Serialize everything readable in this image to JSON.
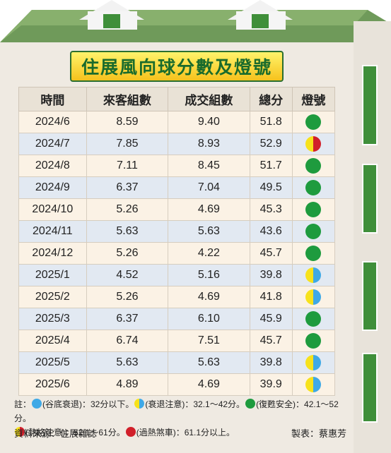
{
  "title": "住展風向球分數及燈號",
  "table": {
    "headers": [
      "時間",
      "來客組數",
      "成交組數",
      "總分",
      "燈號"
    ],
    "rows": [
      {
        "time": "2024/6",
        "visitors": "8.59",
        "deals": "9.40",
        "score": "51.8",
        "light": "green"
      },
      {
        "time": "2024/7",
        "visitors": "7.85",
        "deals": "8.93",
        "score": "52.9",
        "light": "yellow-red"
      },
      {
        "time": "2024/8",
        "visitors": "7.11",
        "deals": "8.45",
        "score": "51.7",
        "light": "green"
      },
      {
        "time": "2024/9",
        "visitors": "6.37",
        "deals": "7.04",
        "score": "49.5",
        "light": "green"
      },
      {
        "time": "2024/10",
        "visitors": "5.26",
        "deals": "4.69",
        "score": "45.3",
        "light": "green"
      },
      {
        "time": "2024/11",
        "visitors": "5.63",
        "deals": "5.63",
        "score": "43.6",
        "light": "green"
      },
      {
        "time": "2024/12",
        "visitors": "5.26",
        "deals": "4.22",
        "score": "45.7",
        "light": "green"
      },
      {
        "time": "2025/1",
        "visitors": "4.52",
        "deals": "5.16",
        "score": "39.8",
        "light": "yellow-blue"
      },
      {
        "time": "2025/2",
        "visitors": "5.26",
        "deals": "4.69",
        "score": "41.8",
        "light": "yellow-blue"
      },
      {
        "time": "2025/3",
        "visitors": "6.37",
        "deals": "6.10",
        "score": "45.9",
        "light": "green"
      },
      {
        "time": "2025/4",
        "visitors": "6.74",
        "deals": "7.51",
        "score": "45.7",
        "light": "green"
      },
      {
        "time": "2025/5",
        "visitors": "5.63",
        "deals": "5.63",
        "score": "39.8",
        "light": "yellow-blue"
      },
      {
        "time": "2025/6",
        "visitors": "4.89",
        "deals": "4.69",
        "score": "39.9",
        "light": "yellow-blue"
      }
    ]
  },
  "legend": {
    "prefix": "註：",
    "items": [
      {
        "light": "blue",
        "text": "(谷底衰退)：32分以下。"
      },
      {
        "light": "yellow-blue",
        "text": "(衰退注意)：32.1～42分。"
      },
      {
        "light": "green",
        "text": "(復甦安全)：42.1～52分。"
      },
      {
        "light": "yellow-red",
        "text": "(熱絡注意)：52.1～61分。"
      },
      {
        "light": "red",
        "text": "(過熱煞車)：61.1分以上。"
      }
    ]
  },
  "footer": {
    "source": "資料來源：住展雜誌",
    "credit": "製表：蔡惠芳"
  },
  "colors": {
    "green": "#1e9b3e",
    "yellow": "#f7e21b",
    "red": "#d1202a",
    "blue": "#3fa9e6",
    "roof": "#6f9a5a"
  }
}
